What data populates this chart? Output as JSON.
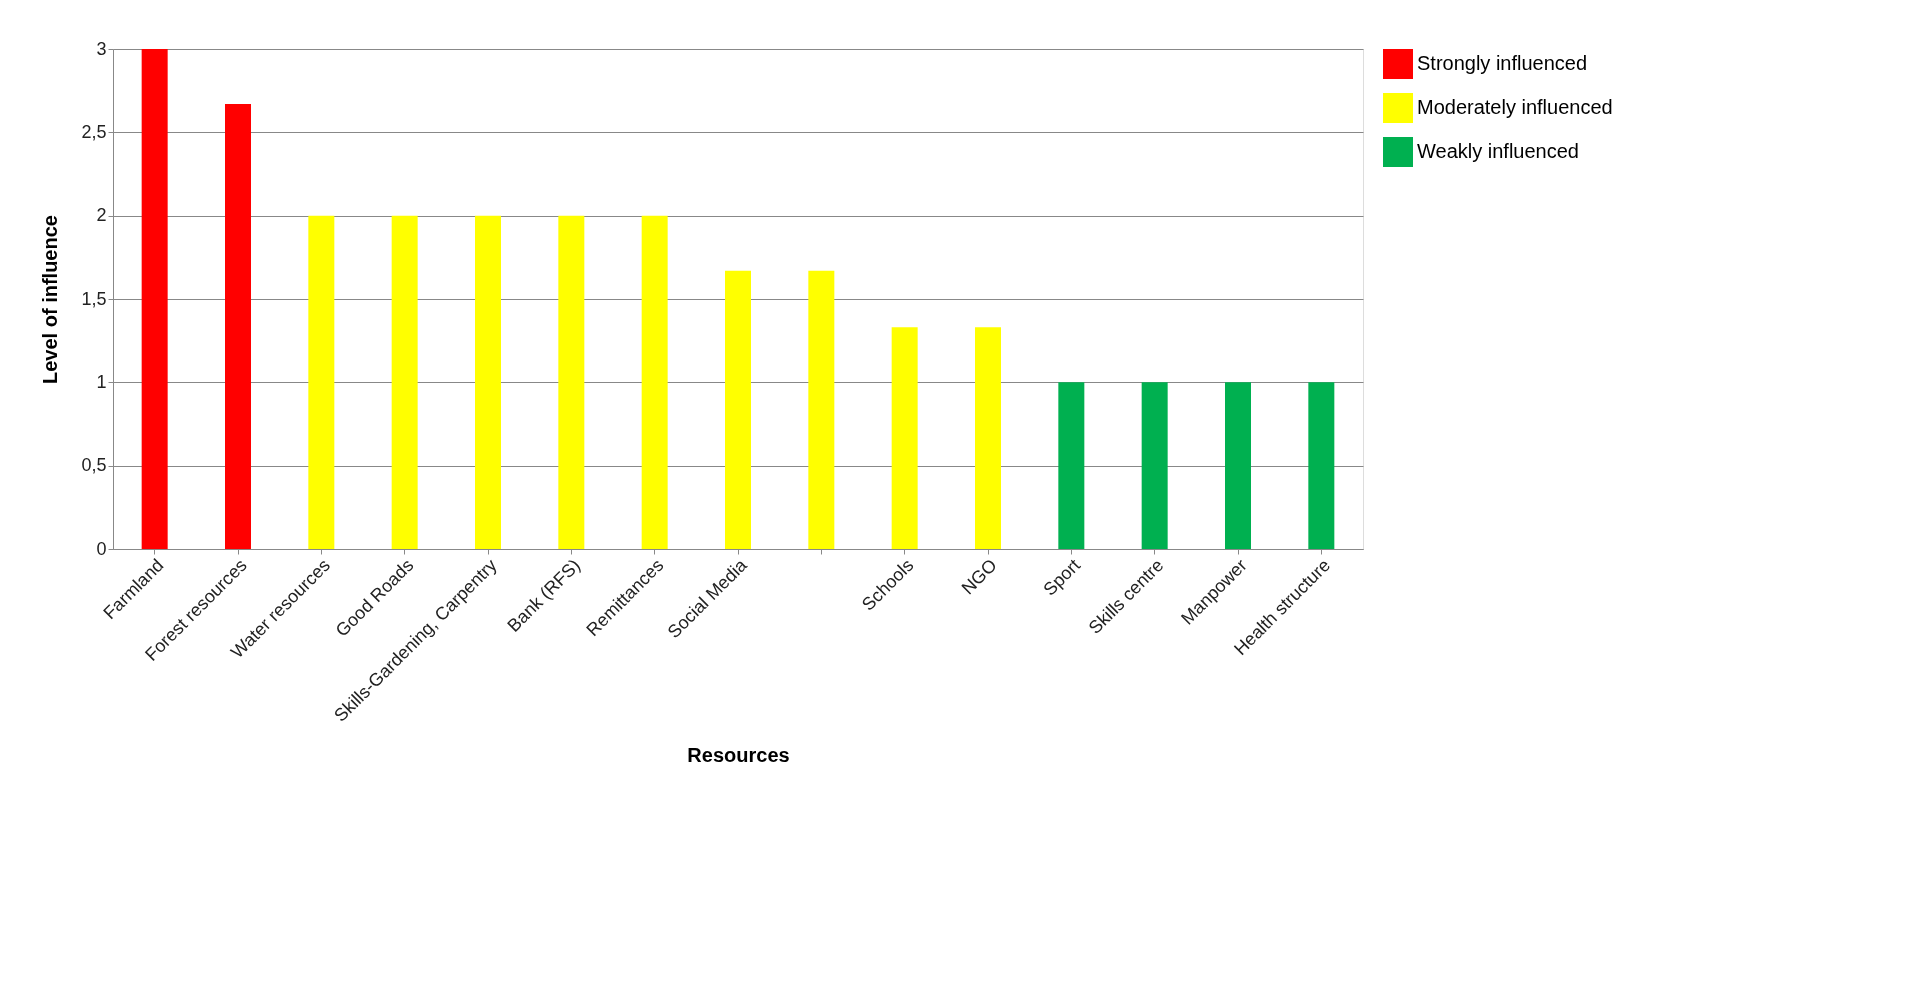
{
  "chart_data": {
    "type": "bar",
    "xlabel": "Resources",
    "ylabel": "Level of influence",
    "categories": [
      "Farmland",
      "Forest resources",
      "Water resources",
      "Good Roads",
      "Skills-Gardening, Carpentry",
      "Bank (RFS)",
      "Remittances",
      "Social Media",
      null,
      "Schools",
      "NGO",
      "Sport",
      "Skills centre",
      "Manpower",
      "Health structure"
    ],
    "series": [
      {
        "name": "Strongly influenced",
        "color": "#ff0000",
        "values": [
          3,
          2.67,
          null,
          null,
          null,
          null,
          null,
          null,
          null,
          null,
          null,
          null,
          null,
          null,
          null
        ]
      },
      {
        "name": "Moderately influenced",
        "color": "#ffff00",
        "values": [
          null,
          null,
          2,
          2,
          2,
          2,
          2,
          1.67,
          1.67,
          1.33,
          1.33,
          null,
          null,
          null,
          null
        ]
      },
      {
        "name": "Weakly influenced",
        "color": "#00b050",
        "values": [
          null,
          null,
          null,
          null,
          null,
          null,
          null,
          null,
          null,
          null,
          null,
          1,
          1,
          1,
          1
        ]
      }
    ],
    "ylim": [
      0,
      3
    ],
    "yticks": [
      0,
      {
        "value": 0.5,
        "label": "0,5"
      },
      1,
      {
        "value": 1.5,
        "label": "1,5"
      },
      2,
      {
        "value": 2.5,
        "label": "2,5"
      },
      3
    ],
    "grid": "y",
    "legend": "right"
  }
}
